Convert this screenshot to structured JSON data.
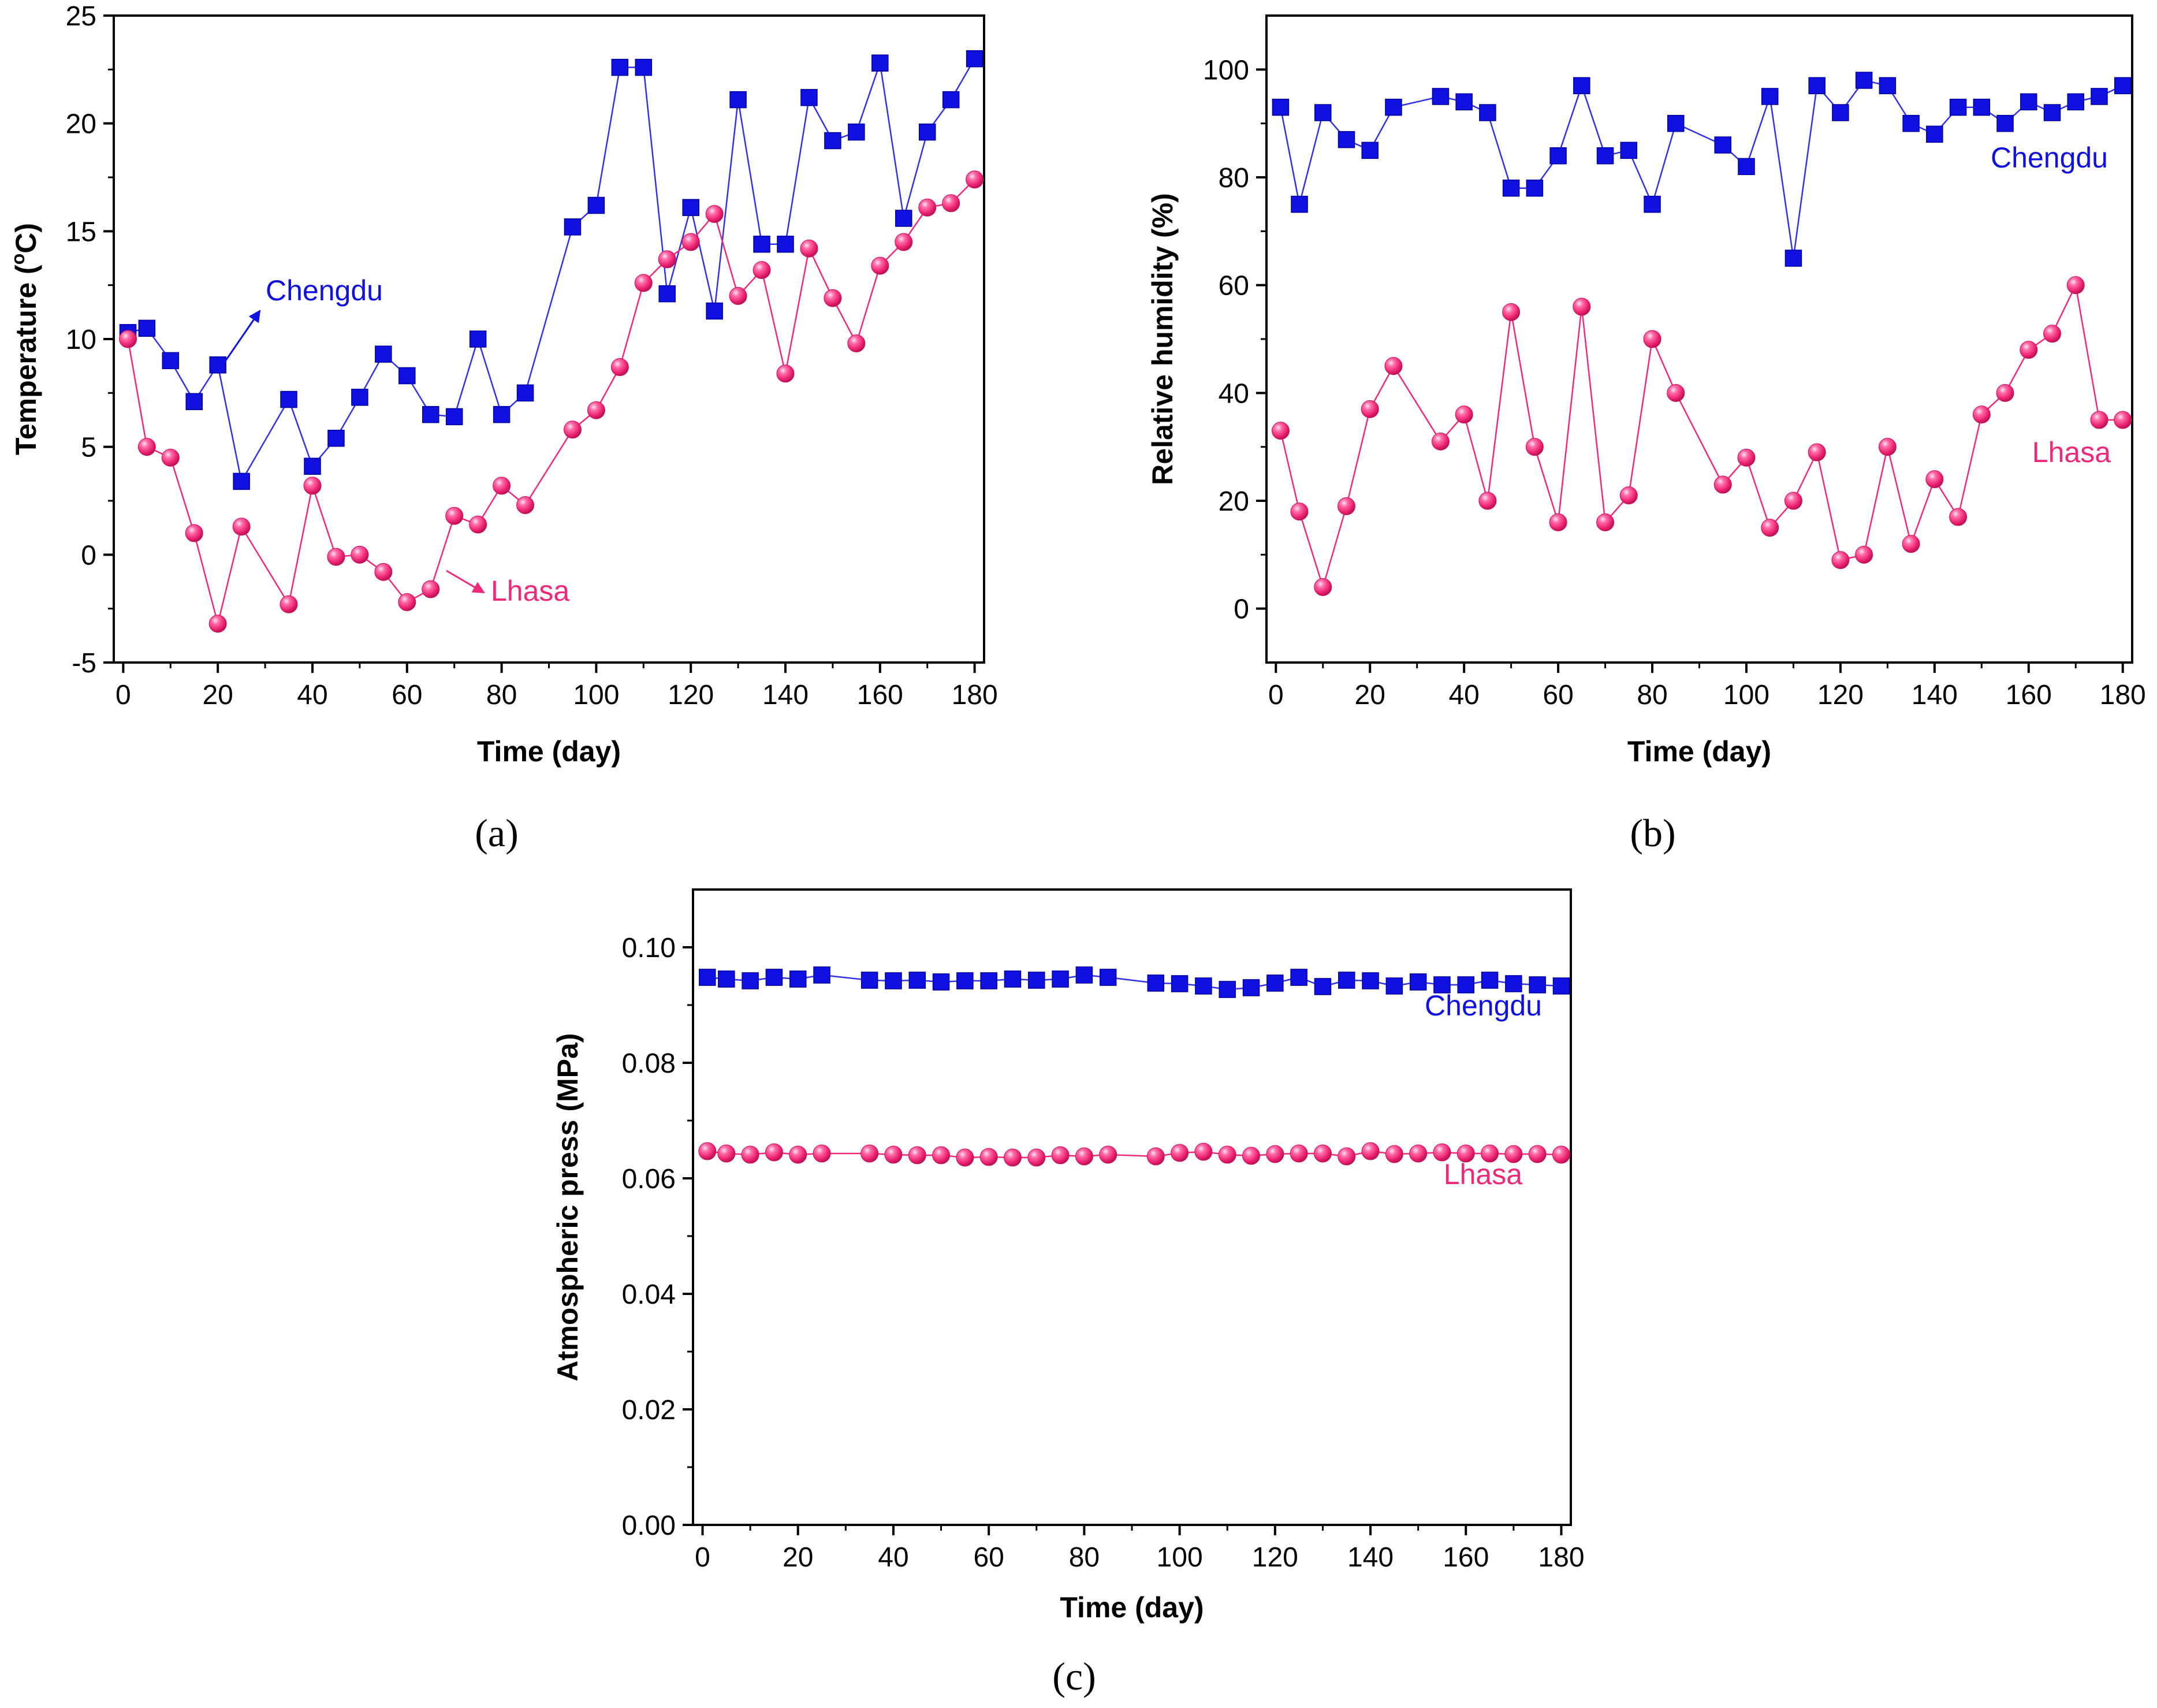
{
  "colors": {
    "chengdu": "#1010e0",
    "chengdu_line": "#3030e6",
    "lhasa": "#f0287a",
    "lhasa_dark": "#c8145e",
    "lhasa_light": "#ffb0d0",
    "axis": "#000000"
  },
  "chart_data": [
    {
      "id": "a",
      "type": "line",
      "panel_label": "(a)",
      "xlabel": "Time (day)",
      "ylabel": "Temperature (°C)",
      "ylabel_parts": [
        "Temperature (",
        "o",
        "C)"
      ],
      "xlim": [
        -2,
        182
      ],
      "ylim": [
        -5,
        25
      ],
      "xticks": [
        0,
        20,
        40,
        60,
        80,
        100,
        120,
        140,
        160,
        180
      ],
      "yticks": [
        -5,
        0,
        5,
        10,
        15,
        20,
        25
      ],
      "tick_labels_x": [
        "0",
        "20",
        "40",
        "60",
        "80",
        "100",
        "120",
        "140",
        "160",
        "180"
      ],
      "tick_labels_y": [
        "-5",
        "0",
        "5",
        "10",
        "15",
        "20",
        "25"
      ],
      "annotation_arrows": true,
      "series": [
        {
          "name": "Chengdu",
          "marker": "square",
          "x": [
            1,
            5,
            10,
            15,
            20,
            25,
            35,
            40,
            45,
            50,
            55,
            60,
            65,
            70,
            75,
            80,
            85,
            95,
            100,
            105,
            110,
            115,
            120,
            125,
            130,
            135,
            140,
            145,
            150,
            155,
            160,
            165,
            170,
            175,
            180
          ],
          "y": [
            10.3,
            10.5,
            9.0,
            7.1,
            8.8,
            3.4,
            7.2,
            4.1,
            5.4,
            7.3,
            9.3,
            8.3,
            6.5,
            6.4,
            10.0,
            6.5,
            7.5,
            15.2,
            16.2,
            22.6,
            22.6,
            12.1,
            16.1,
            11.3,
            21.1,
            14.4,
            14.4,
            21.2,
            19.2,
            19.6,
            22.8,
            15.6,
            19.6,
            21.1,
            23.0
          ]
        },
        {
          "name": "Lhasa",
          "marker": "sphere",
          "x": [
            1,
            5,
            10,
            15,
            20,
            25,
            35,
            40,
            45,
            50,
            55,
            60,
            65,
            70,
            75,
            80,
            85,
            95,
            100,
            105,
            110,
            115,
            120,
            125,
            130,
            135,
            140,
            145,
            150,
            155,
            160,
            165,
            170,
            175,
            180
          ],
          "y": [
            10.0,
            5.0,
            4.5,
            1.0,
            -3.2,
            1.3,
            -2.3,
            3.2,
            -0.1,
            0.0,
            -0.8,
            -2.2,
            -1.6,
            1.8,
            1.4,
            3.2,
            2.3,
            5.8,
            6.7,
            8.7,
            12.6,
            13.7,
            14.5,
            15.8,
            12.0,
            13.2,
            8.4,
            14.2,
            11.9,
            9.8,
            13.4,
            14.5,
            16.1,
            16.3,
            17.4
          ]
        }
      ]
    },
    {
      "id": "b",
      "type": "line",
      "panel_label": "(b)",
      "xlabel": "Time (day)",
      "ylabel": "Relative humidity (%)",
      "xlim": [
        -2,
        182
      ],
      "ylim": [
        -10,
        110
      ],
      "xticks": [
        0,
        20,
        40,
        60,
        80,
        100,
        120,
        140,
        160,
        180
      ],
      "yticks": [
        0,
        20,
        40,
        60,
        80,
        100
      ],
      "tick_labels_x": [
        "0",
        "20",
        "40",
        "60",
        "80",
        "100",
        "120",
        "140",
        "160",
        "180"
      ],
      "tick_labels_y": [
        "0",
        "20",
        "40",
        "60",
        "80",
        "100"
      ],
      "series": [
        {
          "name": "Chengdu",
          "marker": "square",
          "x": [
            1,
            5,
            10,
            15,
            20,
            25,
            35,
            40,
            45,
            50,
            55,
            60,
            65,
            70,
            75,
            80,
            85,
            95,
            100,
            105,
            110,
            115,
            120,
            125,
            130,
            135,
            140,
            145,
            150,
            155,
            160,
            165,
            170,
            175,
            180
          ],
          "y": [
            93,
            75,
            92,
            87,
            85,
            93,
            95,
            94,
            92,
            78,
            78,
            84,
            97,
            84,
            85,
            75,
            90,
            86,
            82,
            95,
            65,
            97,
            92,
            98,
            97,
            90,
            88,
            93,
            93,
            90,
            94,
            92,
            94,
            95,
            97
          ]
        },
        {
          "name": "Lhasa",
          "marker": "sphere",
          "x": [
            1,
            5,
            10,
            15,
            20,
            25,
            35,
            40,
            45,
            50,
            55,
            60,
            65,
            70,
            75,
            80,
            85,
            95,
            100,
            105,
            110,
            115,
            120,
            125,
            130,
            135,
            140,
            145,
            150,
            155,
            160,
            165,
            170,
            175,
            180
          ],
          "y": [
            33,
            18,
            4,
            19,
            37,
            45,
            31,
            36,
            20,
            55,
            30,
            16,
            56,
            16,
            21,
            50,
            40,
            23,
            28,
            15,
            20,
            29,
            9,
            10,
            30,
            12,
            24,
            17,
            36,
            40,
            48,
            51,
            60,
            35,
            35
          ]
        }
      ]
    },
    {
      "id": "c",
      "type": "line",
      "panel_label": "(c)",
      "xlabel": "Time (day)",
      "ylabel": "Atmospheric press (MPa)",
      "xlim": [
        -2,
        182
      ],
      "ylim": [
        0,
        0.11
      ],
      "xticks": [
        0,
        20,
        40,
        60,
        80,
        100,
        120,
        140,
        160,
        180
      ],
      "yticks": [
        0,
        0.02,
        0.04,
        0.06,
        0.08,
        0.1
      ],
      "tick_labels_x": [
        "0",
        "20",
        "40",
        "60",
        "80",
        "100",
        "120",
        "140",
        "160",
        "180"
      ],
      "tick_labels_y": [
        "0.00",
        "0.02",
        "0.04",
        "0.06",
        "0.08",
        "0.10"
      ],
      "series": [
        {
          "name": "Chengdu",
          "marker": "square",
          "x": [
            1,
            5,
            10,
            15,
            20,
            25,
            35,
            40,
            45,
            50,
            55,
            60,
            65,
            70,
            75,
            80,
            85,
            95,
            100,
            105,
            110,
            115,
            120,
            125,
            130,
            135,
            140,
            145,
            150,
            155,
            160,
            165,
            170,
            175,
            180
          ],
          "y": [
            0.0948,
            0.0945,
            0.0942,
            0.0948,
            0.0945,
            0.0952,
            0.0943,
            0.0942,
            0.0943,
            0.094,
            0.0942,
            0.0942,
            0.0945,
            0.0943,
            0.0945,
            0.0952,
            0.0948,
            0.0938,
            0.0937,
            0.0933,
            0.0927,
            0.093,
            0.0938,
            0.0948,
            0.0932,
            0.0943,
            0.0942,
            0.0933,
            0.094,
            0.0935,
            0.0935,
            0.0943,
            0.0937,
            0.0935,
            0.0933
          ]
        },
        {
          "name": "Lhasa",
          "marker": "sphere",
          "x": [
            1,
            5,
            10,
            15,
            20,
            25,
            35,
            40,
            45,
            50,
            55,
            60,
            65,
            70,
            75,
            80,
            85,
            95,
            100,
            105,
            110,
            115,
            120,
            125,
            130,
            135,
            140,
            145,
            150,
            155,
            160,
            165,
            170,
            175,
            180
          ],
          "y": [
            0.0647,
            0.0643,
            0.0641,
            0.0645,
            0.0641,
            0.0643,
            0.0643,
            0.0641,
            0.064,
            0.064,
            0.0636,
            0.0637,
            0.0636,
            0.0636,
            0.064,
            0.0638,
            0.0641,
            0.0638,
            0.0644,
            0.0646,
            0.0641,
            0.0639,
            0.0642,
            0.0643,
            0.0643,
            0.0638,
            0.0647,
            0.0642,
            0.0643,
            0.0645,
            0.0643,
            0.0643,
            0.0642,
            0.0642,
            0.0641
          ]
        }
      ]
    }
  ]
}
